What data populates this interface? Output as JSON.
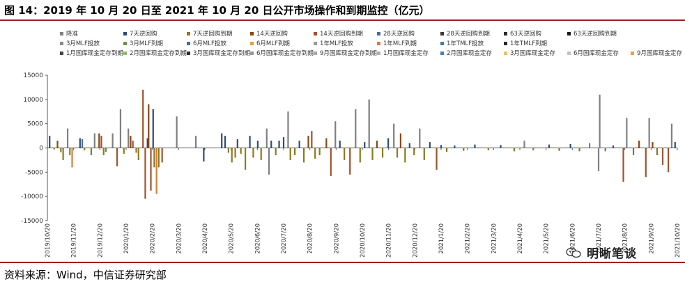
{
  "header": {
    "title": "图 14：2019 年 10 月 20 日至 2021 年 10 月 20 日公开市场操作和到期监控（亿元）"
  },
  "footer": {
    "source": "资料来源：Wind，中信证券研究部"
  },
  "watermark": {
    "text": "明晰笔谈",
    "icon": "wechat-icon"
  },
  "chart_data": {
    "type": "bar",
    "ylim": [
      -15000,
      15000
    ],
    "yticks": [
      -15000,
      -10000,
      -5000,
      0,
      5000,
      10000,
      15000
    ],
    "grid": false,
    "legend_position": "top",
    "xticks": [
      "2019/10/20",
      "2019/11/20",
      "2019/12/20",
      "2020/1/20",
      "2020/2/20",
      "2020/3/20",
      "2020/4/20",
      "2020/5/20",
      "2020/6/20",
      "2020/7/20",
      "2020/8/20",
      "2020/9/20",
      "2020/10/20",
      "2020/11/20",
      "2020/12/20",
      "2021/1/20",
      "2021/2/20",
      "2021/3/20",
      "2021/4/20",
      "2021/5/20",
      "2021/6/20",
      "2021/7/20",
      "2021/8/20",
      "2021/9/20",
      "2021/10/20"
    ],
    "series": [
      {
        "name": "降准",
        "color": "#7f7f7f"
      },
      {
        "name": "7天逆回购",
        "color": "#2e4a7d"
      },
      {
        "name": "7天逆回购到期",
        "color": "#8c7a1e"
      },
      {
        "name": "14天逆回购",
        "color": "#8b4513"
      },
      {
        "name": "14天逆回购到期",
        "color": "#a0522d"
      },
      {
        "name": "28天逆回购",
        "color": "#4a6a9a"
      },
      {
        "name": "28天逆回购到期",
        "color": "#3a3a3a"
      },
      {
        "name": "63天逆回购",
        "color": "#2b2b2b"
      },
      {
        "name": "63天逆回购到期",
        "color": "#1a1a1a"
      },
      {
        "name": "3月MLF投放",
        "color": "#8a8a8a"
      },
      {
        "name": "3月MLF到期",
        "color": "#5e9a3a"
      },
      {
        "name": "6月MLF投放",
        "color": "#3b6fc4"
      },
      {
        "name": "6月MLF到期",
        "color": "#d6a640"
      },
      {
        "name": "1年MLF投放",
        "color": "#9a9a9a"
      },
      {
        "name": "1年MLF到期",
        "color": "#e07a3a"
      },
      {
        "name": "1年TMLF投放",
        "color": "#4a7aa0"
      },
      {
        "name": "1年TMLF到期",
        "color": "#2a2a2a"
      },
      {
        "name": "1月国库现金定存到期",
        "color": "#454545"
      },
      {
        "name": "2月国库现金定存到期",
        "color": "#8fbf60"
      },
      {
        "name": "3月国库现金定存到期",
        "color": "#303030"
      },
      {
        "name": "6月国库现金定存到期",
        "color": "#9a9a9a"
      },
      {
        "name": "9月国库现金定存到期",
        "color": "#a8a8a8"
      },
      {
        "name": "1月国库现金定存",
        "color": "#b0b0b0"
      },
      {
        "name": "2月国库现金定存",
        "color": "#4a80b0"
      },
      {
        "name": "3月国库现金定存",
        "color": "#f0c060"
      },
      {
        "name": "6月国库现金定存",
        "color": "#c0c0c0"
      },
      {
        "name": "9月国库现金定存",
        "color": "#f0a040"
      }
    ],
    "bars": [
      {
        "x": 0.2,
        "v": 2500,
        "s": 1
      },
      {
        "x": 0.6,
        "v": -300,
        "s": 2
      },
      {
        "x": 0.9,
        "v": 1500,
        "s": 3
      },
      {
        "x": 1.2,
        "v": -900,
        "s": 2
      },
      {
        "x": 1.4,
        "v": -2500,
        "s": 2
      },
      {
        "x": 1.8,
        "v": 4000,
        "s": 0
      },
      {
        "x": 2.0,
        "v": -1500,
        "s": 2
      },
      {
        "x": 2.2,
        "v": -4000,
        "s": 14
      },
      {
        "x": 2.9,
        "v": 2000,
        "s": 1
      },
      {
        "x": 3.1,
        "v": 1800,
        "s": 5
      },
      {
        "x": 3.3,
        "v": -500,
        "s": 2
      },
      {
        "x": 3.9,
        "v": -1500,
        "s": 2
      },
      {
        "x": 4.2,
        "v": 3000,
        "s": 0
      },
      {
        "x": 4.6,
        "v": 3000,
        "s": 3
      },
      {
        "x": 4.8,
        "v": 2500,
        "s": 4
      },
      {
        "x": 5.0,
        "v": -1500,
        "s": 2
      },
      {
        "x": 5.2,
        "v": -800,
        "s": 2
      },
      {
        "x": 5.8,
        "v": 3000,
        "s": 0
      },
      {
        "x": 6.2,
        "v": -3800,
        "s": 4
      },
      {
        "x": 6.5,
        "v": 8000,
        "s": 0
      },
      {
        "x": 6.8,
        "v": -1200,
        "s": 2
      },
      {
        "x": 7.2,
        "v": 4000,
        "s": 0
      },
      {
        "x": 7.4,
        "v": 2500,
        "s": 3
      },
      {
        "x": 7.6,
        "v": 1500,
        "s": 4
      },
      {
        "x": 7.9,
        "v": -1000,
        "s": 2
      },
      {
        "x": 8.1,
        "v": -2500,
        "s": 2
      },
      {
        "x": 8.5,
        "v": 12000,
        "s": 4
      },
      {
        "x": 8.7,
        "v": -10500,
        "s": 4
      },
      {
        "x": 8.9,
        "v": 2000,
        "s": 1
      },
      {
        "x": 9.0,
        "v": 9000,
        "s": 3
      },
      {
        "x": 9.2,
        "v": -8800,
        "s": 4
      },
      {
        "x": 9.4,
        "v": 8000,
        "s": 1
      },
      {
        "x": 9.5,
        "v": -4000,
        "s": 2
      },
      {
        "x": 9.7,
        "v": -9500,
        "s": 14
      },
      {
        "x": 9.9,
        "v": -4000,
        "s": 2
      },
      {
        "x": 10.2,
        "v": -3000,
        "s": 4
      },
      {
        "x": 11.5,
        "v": 6500,
        "s": 0
      },
      {
        "x": 13.2,
        "v": 2500,
        "s": 0
      },
      {
        "x": 13.9,
        "v": -2800,
        "s": 1
      },
      {
        "x": 15.5,
        "v": 3000,
        "s": 1
      },
      {
        "x": 15.8,
        "v": 2500,
        "s": 1
      },
      {
        "x": 16.1,
        "v": -1000,
        "s": 2
      },
      {
        "x": 16.4,
        "v": -3000,
        "s": 2
      },
      {
        "x": 16.7,
        "v": -2000,
        "s": 2
      },
      {
        "x": 16.9,
        "v": 1800,
        "s": 1
      },
      {
        "x": 17.2,
        "v": -1200,
        "s": 2
      },
      {
        "x": 17.6,
        "v": -4500,
        "s": 2
      },
      {
        "x": 18.0,
        "v": 2500,
        "s": 1
      },
      {
        "x": 18.3,
        "v": -2000,
        "s": 2
      },
      {
        "x": 18.7,
        "v": 1500,
        "s": 1
      },
      {
        "x": 19.0,
        "v": -2500,
        "s": 2
      },
      {
        "x": 19.5,
        "v": 4000,
        "s": 0
      },
      {
        "x": 19.7,
        "v": -5500,
        "s": 0
      },
      {
        "x": 19.9,
        "v": 1500,
        "s": 1
      },
      {
        "x": 20.3,
        "v": -1500,
        "s": 2
      },
      {
        "x": 20.6,
        "v": 1500,
        "s": 1
      },
      {
        "x": 21.0,
        "v": 2200,
        "s": 1
      },
      {
        "x": 21.4,
        "v": 7500,
        "s": 0
      },
      {
        "x": 21.6,
        "v": -2500,
        "s": 2
      },
      {
        "x": 22.0,
        "v": -1500,
        "s": 2
      },
      {
        "x": 22.4,
        "v": 1500,
        "s": 1
      },
      {
        "x": 22.8,
        "v": -3000,
        "s": 2
      },
      {
        "x": 23.2,
        "v": 2500,
        "s": 3
      },
      {
        "x": 23.5,
        "v": 3500,
        "s": 4
      },
      {
        "x": 23.8,
        "v": -2200,
        "s": 2
      },
      {
        "x": 24.2,
        "v": -1500,
        "s": 2
      },
      {
        "x": 24.8,
        "v": 2000,
        "s": 3
      },
      {
        "x": 25.2,
        "v": -5800,
        "s": 4
      },
      {
        "x": 25.6,
        "v": 5500,
        "s": 0
      },
      {
        "x": 26.0,
        "v": 1500,
        "s": 1
      },
      {
        "x": 26.4,
        "v": -2500,
        "s": 2
      },
      {
        "x": 26.9,
        "v": -5500,
        "s": 4
      },
      {
        "x": 27.4,
        "v": 8000,
        "s": 0
      },
      {
        "x": 27.8,
        "v": -3000,
        "s": 2
      },
      {
        "x": 28.2,
        "v": 1200,
        "s": 1
      },
      {
        "x": 28.6,
        "v": 10000,
        "s": 0
      },
      {
        "x": 28.9,
        "v": -2500,
        "s": 2
      },
      {
        "x": 29.3,
        "v": 1500,
        "s": 3
      },
      {
        "x": 29.8,
        "v": -2000,
        "s": 2
      },
      {
        "x": 30.3,
        "v": 2000,
        "s": 1
      },
      {
        "x": 30.8,
        "v": 5000,
        "s": 0
      },
      {
        "x": 31.1,
        "v": -2000,
        "s": 2
      },
      {
        "x": 31.4,
        "v": 3000,
        "s": 3
      },
      {
        "x": 31.8,
        "v": -3000,
        "s": 2
      },
      {
        "x": 32.2,
        "v": 1000,
        "s": 1
      },
      {
        "x": 32.6,
        "v": -1500,
        "s": 2
      },
      {
        "x": 33.1,
        "v": 4000,
        "s": 0
      },
      {
        "x": 33.5,
        "v": -2500,
        "s": 2
      },
      {
        "x": 34.0,
        "v": 1200,
        "s": 1
      },
      {
        "x": 34.6,
        "v": -4500,
        "s": 4
      },
      {
        "x": 35.0,
        "v": 600,
        "s": 1
      },
      {
        "x": 35.5,
        "v": -800,
        "s": 2
      },
      {
        "x": 36.2,
        "v": 500,
        "s": 1
      },
      {
        "x": 37.0,
        "v": -600,
        "s": 2
      },
      {
        "x": 38.0,
        "v": 700,
        "s": 1
      },
      {
        "x": 39.2,
        "v": -500,
        "s": 2
      },
      {
        "x": 40.3,
        "v": 600,
        "s": 1
      },
      {
        "x": 41.5,
        "v": -700,
        "s": 2
      },
      {
        "x": 42.4,
        "v": 1500,
        "s": 0
      },
      {
        "x": 43.2,
        "v": -500,
        "s": 2
      },
      {
        "x": 44.6,
        "v": 700,
        "s": 1
      },
      {
        "x": 45.5,
        "v": -600,
        "s": 2
      },
      {
        "x": 46.5,
        "v": 800,
        "s": 1
      },
      {
        "x": 47.3,
        "v": -700,
        "s": 2
      },
      {
        "x": 48.2,
        "v": 1000,
        "s": 0
      },
      {
        "x": 49.0,
        "v": -4800,
        "s": 0
      },
      {
        "x": 49.1,
        "v": 11000,
        "s": 0
      },
      {
        "x": 49.6,
        "v": -700,
        "s": 2
      },
      {
        "x": 50.3,
        "v": 500,
        "s": 1
      },
      {
        "x": 51.2,
        "v": -7000,
        "s": 4
      },
      {
        "x": 51.5,
        "v": 6200,
        "s": 0
      },
      {
        "x": 52.1,
        "v": -1500,
        "s": 2
      },
      {
        "x": 52.6,
        "v": 1500,
        "s": 3
      },
      {
        "x": 53.2,
        "v": -6000,
        "s": 4
      },
      {
        "x": 53.5,
        "v": 6200,
        "s": 0
      },
      {
        "x": 53.8,
        "v": 1200,
        "s": 3
      },
      {
        "x": 54.2,
        "v": -1500,
        "s": 2
      },
      {
        "x": 54.7,
        "v": -3500,
        "s": 4
      },
      {
        "x": 55.2,
        "v": -5000,
        "s": 4
      },
      {
        "x": 55.5,
        "v": 5000,
        "s": 0
      },
      {
        "x": 55.8,
        "v": 1200,
        "s": 1
      }
    ]
  }
}
